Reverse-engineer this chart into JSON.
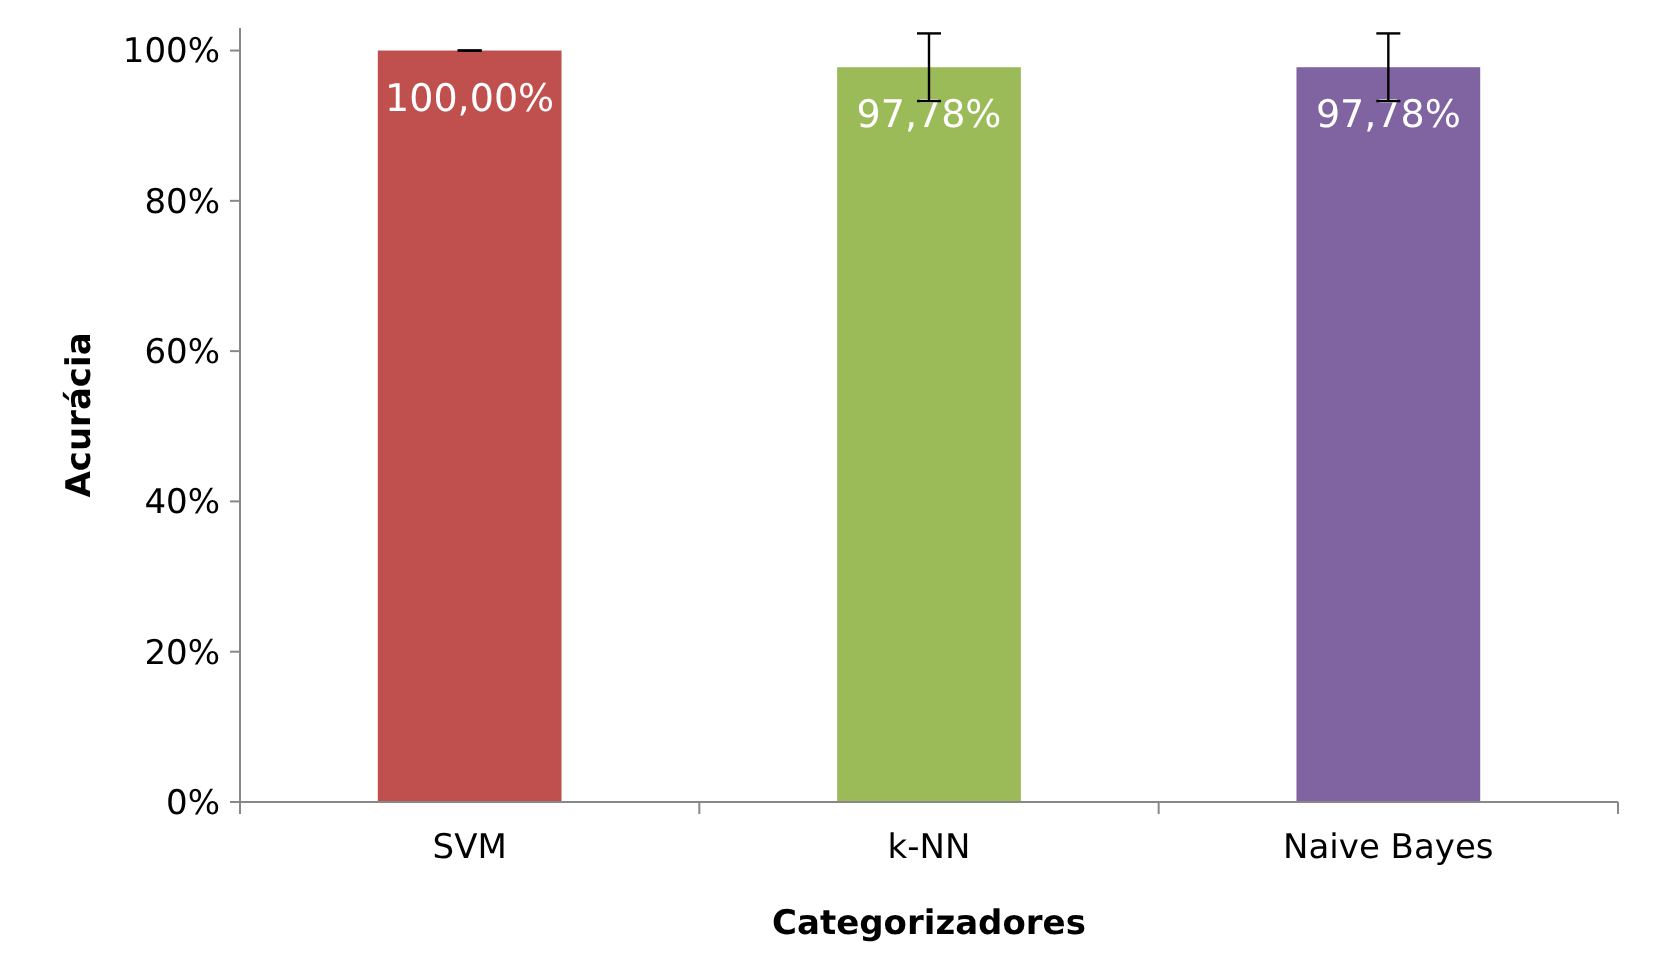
{
  "chart_data": {
    "type": "bar",
    "xlabel": "Categorizadores",
    "ylabel": "Acurácia",
    "categories": [
      "SVM",
      "k-NN",
      "Naive Bayes"
    ],
    "values": [
      100,
      97.78,
      97.78
    ],
    "colors": [
      "#c0504d",
      "#9bbb59",
      "#8064a2"
    ],
    "errors": [
      0,
      4.5,
      4.5
    ],
    "value_labels": [
      "100,00%",
      "97,78%",
      "97,78%"
    ],
    "ylim": [
      0,
      103
    ],
    "yticks": [
      {
        "value": 0,
        "label": "0%"
      },
      {
        "value": 20,
        "label": "20%"
      },
      {
        "value": 40,
        "label": "40%"
      },
      {
        "value": 60,
        "label": "60%"
      },
      {
        "value": 80,
        "label": "80%"
      },
      {
        "value": 100,
        "label": "100%"
      }
    ],
    "grid": false
  }
}
